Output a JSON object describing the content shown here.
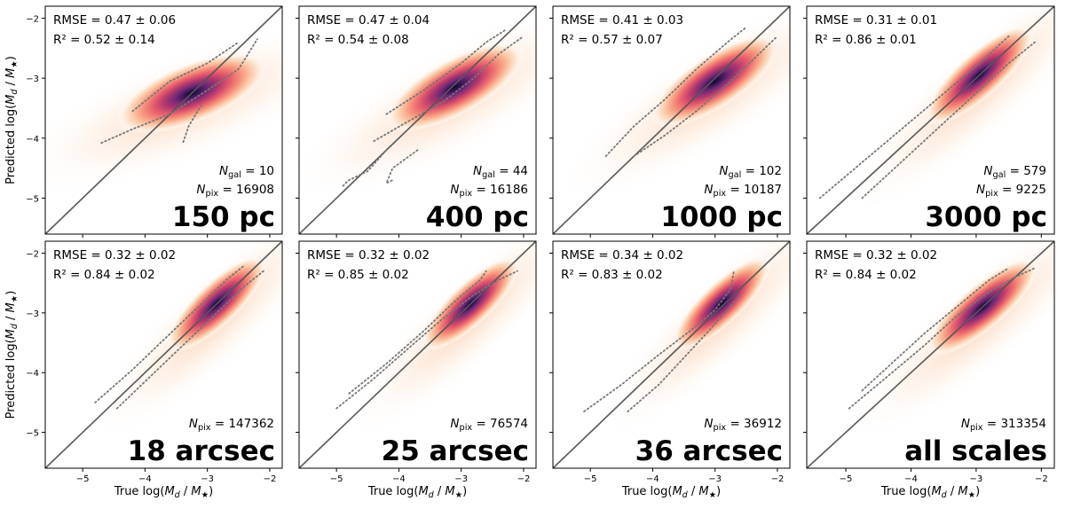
{
  "figure": {
    "x_axis_label": "True log(M_d / M_★)",
    "y_axis_label": "Predicted log(M_d / M_★)",
    "x_ticks": [
      "−5",
      "−4",
      "−3",
      "−2"
    ],
    "y_ticks": [
      "−2",
      "−3",
      "−4",
      "−5"
    ],
    "colormap": [
      "#ffffff",
      "#fdeee0",
      "#fbc9a7",
      "#f6907a",
      "#e45a6b",
      "#b1386f",
      "#722a74",
      "#3a1557",
      "#0d0a2a"
    ],
    "one_to_one_line_color": "#444444",
    "contour_color": "#777777"
  },
  "chart_data": [
    {
      "type": "heatmap",
      "panel": 1,
      "label": "150 pc",
      "rmse": "RMSE = 0.47 ± 0.06",
      "r2": "R² = 0.52 ± 0.14",
      "n_gal": "N_gal = 10",
      "n_pix": "N_pix = 16908",
      "core": {
        "x": -3.25,
        "y": -3.25
      },
      "slope": 0.4,
      "spread": 1.0,
      "contour_lower": [
        [
          -4.7,
          -4.08
        ],
        [
          -4.2,
          -3.85
        ],
        [
          -3.6,
          -3.6
        ],
        [
          -3.0,
          -3.2
        ],
        [
          -2.5,
          -2.85
        ],
        [
          -2.2,
          -2.35
        ]
      ],
      "contour_upper": [
        [
          -4.2,
          -3.55
        ],
        [
          -3.6,
          -3.05
        ],
        [
          -3.0,
          -2.75
        ],
        [
          -2.5,
          -2.4
        ]
      ],
      "contour_tail": [
        [
          -3.1,
          -3.45
        ],
        [
          -3.3,
          -3.8
        ],
        [
          -3.4,
          -4.1
        ]
      ],
      "xlim": [
        -5.6,
        -1.8
      ],
      "ylim": [
        -5.6,
        -1.8
      ]
    },
    {
      "type": "heatmap",
      "panel": 2,
      "label": "400 pc",
      "rmse": "RMSE = 0.47 ± 0.04",
      "r2": "R² = 0.54 ± 0.08",
      "n_gal": "N_gal = 44",
      "n_pix": "N_pix = 16186",
      "core": {
        "x": -3.1,
        "y": -3.15
      },
      "slope": 0.55,
      "spread": 0.9,
      "contour_lower": [
        [
          -4.4,
          -4.05
        ],
        [
          -3.9,
          -3.75
        ],
        [
          -3.3,
          -3.4
        ],
        [
          -2.8,
          -3.0
        ],
        [
          -2.4,
          -2.6
        ],
        [
          -2.0,
          -2.3
        ]
      ],
      "contour_upper": [
        [
          -4.2,
          -3.6
        ],
        [
          -3.6,
          -3.2
        ],
        [
          -3.0,
          -2.75
        ],
        [
          -2.6,
          -2.4
        ],
        [
          -2.3,
          -2.2
        ]
      ],
      "contour_tail": [
        [
          -4.2,
          -4.2
        ],
        [
          -4.5,
          -4.55
        ],
        [
          -4.8,
          -4.7
        ],
        [
          -4.9,
          -4.8
        ]
      ],
      "contour_tail2": [
        [
          -3.7,
          -4.2
        ],
        [
          -4.1,
          -4.5
        ],
        [
          -4.2,
          -4.75
        ],
        [
          -4.1,
          -4.7
        ]
      ],
      "xlim": [
        -5.6,
        -1.8
      ],
      "ylim": [
        -5.6,
        -1.8
      ]
    },
    {
      "type": "heatmap",
      "panel": 3,
      "label": "1000 pc",
      "rmse": "RMSE = 0.41 ± 0.03",
      "r2": "R² = 0.57 ± 0.07",
      "n_gal": "N_gal = 102",
      "n_pix": "N_pix = 10187",
      "core": {
        "x": -3.0,
        "y": -3.05
      },
      "slope": 0.65,
      "spread": 0.8,
      "contour_lower": [
        [
          -4.3,
          -4.3
        ],
        [
          -3.8,
          -3.95
        ],
        [
          -3.3,
          -3.55
        ],
        [
          -2.8,
          -3.1
        ],
        [
          -2.3,
          -2.6
        ],
        [
          -2.0,
          -2.3
        ]
      ],
      "contour_upper": [
        [
          -4.75,
          -4.3
        ],
        [
          -4.3,
          -3.8
        ],
        [
          -3.8,
          -3.35
        ],
        [
          -3.3,
          -2.85
        ],
        [
          -2.8,
          -2.4
        ],
        [
          -2.5,
          -2.15
        ]
      ],
      "xlim": [
        -5.6,
        -1.8
      ],
      "ylim": [
        -5.6,
        -1.8
      ]
    },
    {
      "type": "heatmap",
      "panel": 4,
      "label": "3000 pc",
      "rmse": "RMSE = 0.31 ± 0.01",
      "r2": "R² = 0.86 ± 0.01",
      "n_gal": "N_gal = 579",
      "n_pix": "N_pix = 9225",
      "core": {
        "x": -2.95,
        "y": -2.95
      },
      "slope": 0.9,
      "spread": 0.55,
      "contour_lower": [
        [
          -4.75,
          -5.0
        ],
        [
          -4.2,
          -4.45
        ],
        [
          -3.6,
          -3.85
        ],
        [
          -3.0,
          -3.25
        ],
        [
          -2.5,
          -2.75
        ],
        [
          -2.1,
          -2.4
        ]
      ],
      "contour_upper": [
        [
          -5.4,
          -5.0
        ],
        [
          -4.8,
          -4.45
        ],
        [
          -4.2,
          -3.9
        ],
        [
          -3.6,
          -3.35
        ],
        [
          -3.0,
          -2.8
        ],
        [
          -2.5,
          -2.3
        ]
      ],
      "xlim": [
        -5.6,
        -1.8
      ],
      "ylim": [
        -5.6,
        -1.8
      ]
    },
    {
      "type": "heatmap",
      "panel": 5,
      "label": "18 arcsec",
      "rmse": "RMSE = 0.32 ± 0.02",
      "r2": "R² = 0.84 ± 0.02",
      "n_pix": "N_pix = 147362",
      "core": {
        "x": -2.85,
        "y": -2.85
      },
      "slope": 0.95,
      "spread": 0.5,
      "contour_lower": [
        [
          -4.45,
          -4.6
        ],
        [
          -3.9,
          -4.05
        ],
        [
          -3.3,
          -3.45
        ],
        [
          -2.8,
          -2.95
        ],
        [
          -2.4,
          -2.55
        ],
        [
          -2.1,
          -2.3
        ]
      ],
      "contour_upper": [
        [
          -4.8,
          -4.5
        ],
        [
          -4.2,
          -3.95
        ],
        [
          -3.6,
          -3.35
        ],
        [
          -3.1,
          -2.85
        ],
        [
          -2.7,
          -2.45
        ],
        [
          -2.4,
          -2.2
        ]
      ],
      "xlim": [
        -5.6,
        -1.8
      ],
      "ylim": [
        -5.6,
        -1.8
      ]
    },
    {
      "type": "heatmap",
      "panel": 6,
      "label": "25 arcsec",
      "rmse": "RMSE = 0.32 ± 0.02",
      "r2": "R² = 0.85 ± 0.02",
      "n_pix": "N_pix = 76574",
      "core": {
        "x": -2.85,
        "y": -2.85
      },
      "slope": 0.95,
      "spread": 0.45,
      "contour_lower": [
        [
          -5.0,
          -4.6
        ],
        [
          -4.4,
          -4.1
        ],
        [
          -3.8,
          -3.55
        ],
        [
          -3.3,
          -3.1
        ],
        [
          -2.8,
          -2.7
        ],
        [
          -2.4,
          -2.45
        ],
        [
          -2.1,
          -2.3
        ]
      ],
      "contour_upper": [
        [
          -4.8,
          -4.35
        ],
        [
          -4.2,
          -3.85
        ],
        [
          -3.6,
          -3.3
        ],
        [
          -3.1,
          -2.8
        ],
        [
          -2.7,
          -2.45
        ],
        [
          -2.6,
          -2.3
        ]
      ],
      "xlim": [
        -5.6,
        -1.8
      ],
      "ylim": [
        -5.6,
        -1.8
      ]
    },
    {
      "type": "heatmap",
      "panel": 7,
      "label": "36 arcsec",
      "rmse": "RMSE = 0.34 ± 0.02",
      "r2": "R² = 0.83 ± 0.02",
      "n_pix": "N_pix = 36912",
      "core": {
        "x": -2.9,
        "y": -2.85
      },
      "slope": 0.95,
      "spread": 0.45,
      "contour_lower": [
        [
          -5.1,
          -4.65
        ],
        [
          -4.5,
          -4.2
        ],
        [
          -3.9,
          -3.7
        ],
        [
          -3.4,
          -3.3
        ],
        [
          -3.0,
          -2.95
        ],
        [
          -2.75,
          -2.6
        ],
        [
          -2.7,
          -2.3
        ]
      ],
      "contour_upper": [
        [
          -4.4,
          -4.65
        ],
        [
          -3.9,
          -4.2
        ],
        [
          -3.5,
          -3.75
        ],
        [
          -3.1,
          -3.3
        ],
        [
          -2.8,
          -2.95
        ],
        [
          -2.6,
          -2.7
        ]
      ],
      "xlim": [
        -5.6,
        -1.8
      ],
      "ylim": [
        -5.6,
        -1.8
      ]
    },
    {
      "type": "heatmap",
      "panel": 8,
      "label": "all scales",
      "rmse": "RMSE = 0.32 ± 0.02",
      "r2": "R² = 0.84 ± 0.02",
      "n_pix": "N_pix = 313354",
      "core": {
        "x": -2.9,
        "y": -2.9
      },
      "slope": 0.85,
      "spread": 0.55,
      "contour_lower": [
        [
          -4.95,
          -4.6
        ],
        [
          -4.4,
          -4.1
        ],
        [
          -3.8,
          -3.55
        ],
        [
          -3.3,
          -3.05
        ],
        [
          -2.8,
          -2.65
        ],
        [
          -2.4,
          -2.4
        ],
        [
          -2.1,
          -2.25
        ]
      ],
      "contour_upper": [
        [
          -4.75,
          -4.3
        ],
        [
          -4.3,
          -3.85
        ],
        [
          -3.8,
          -3.35
        ],
        [
          -3.3,
          -2.9
        ],
        [
          -2.8,
          -2.45
        ],
        [
          -2.5,
          -2.25
        ]
      ],
      "xlim": [
        -5.6,
        -1.8
      ],
      "ylim": [
        -5.6,
        -1.8
      ]
    }
  ]
}
